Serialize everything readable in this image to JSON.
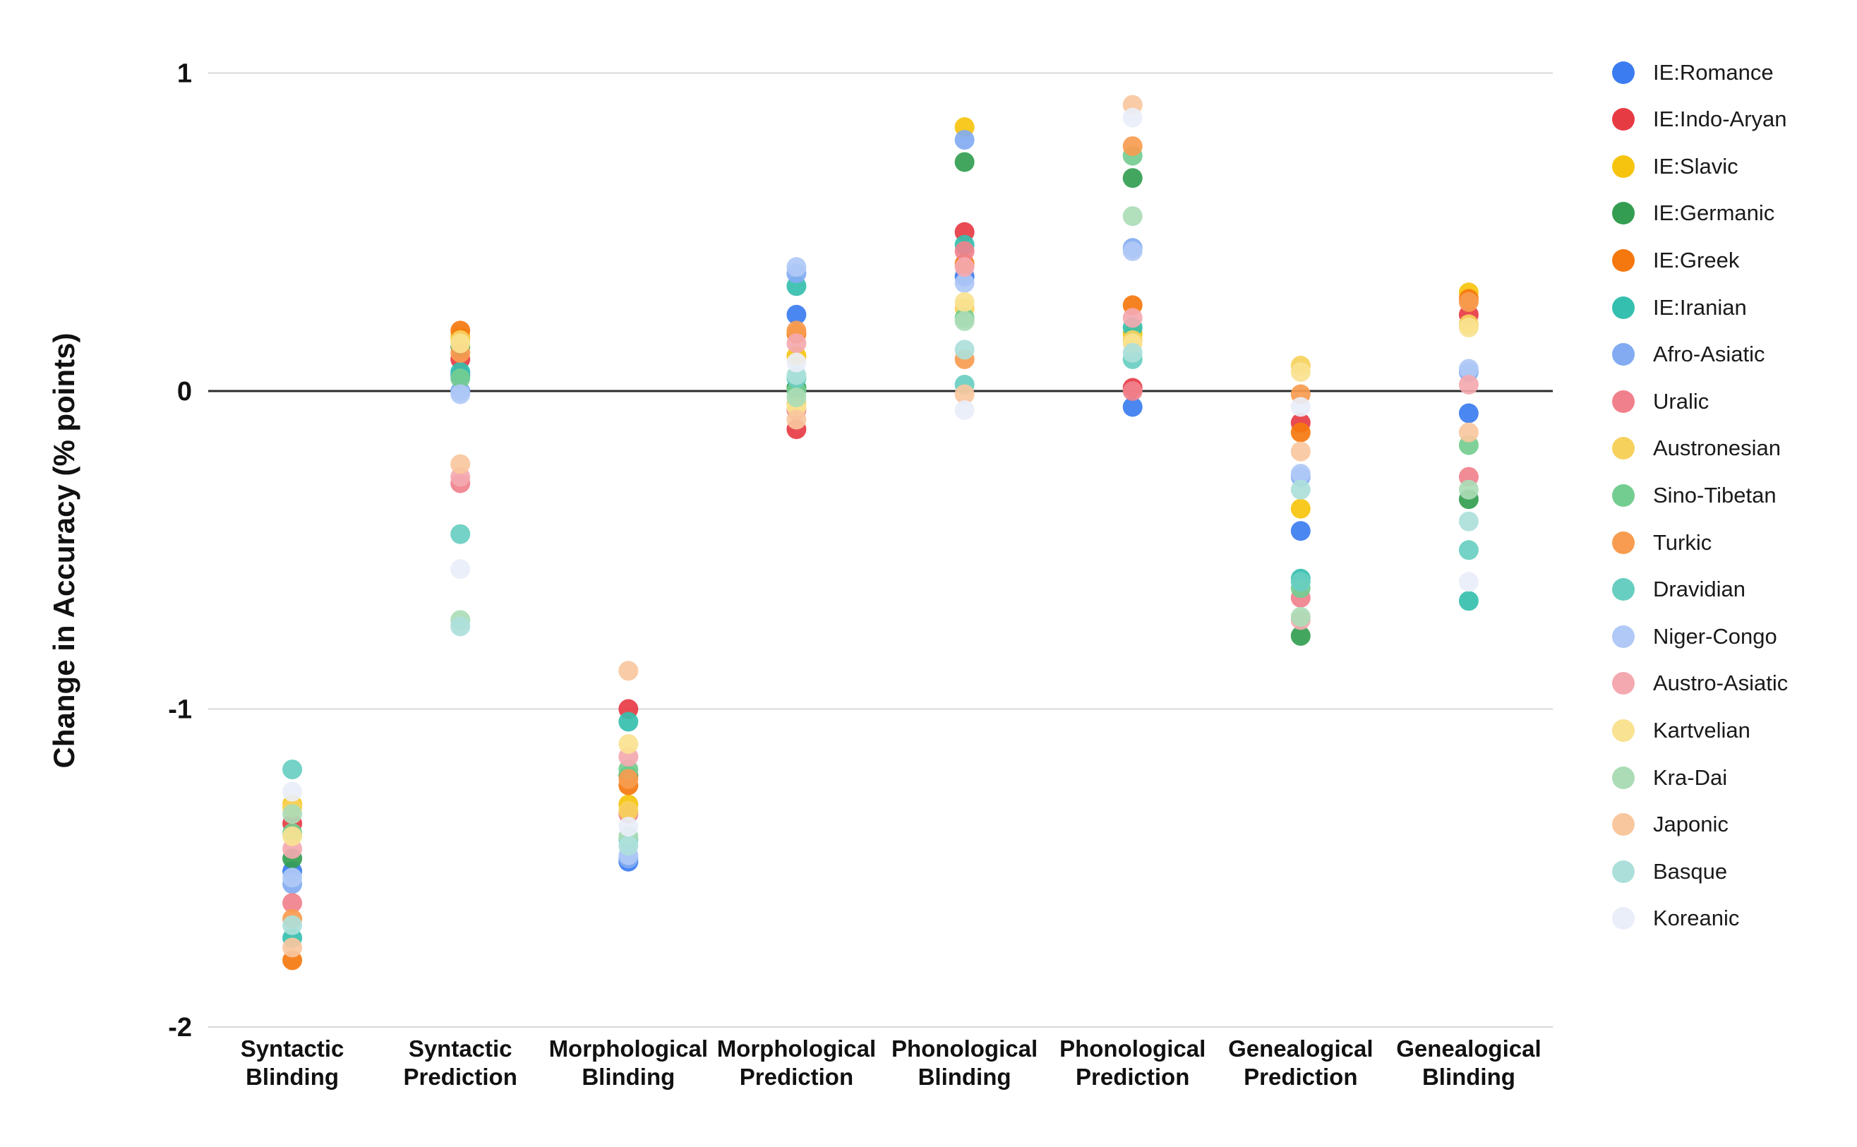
{
  "chart_data": {
    "type": "scatter",
    "title": "",
    "xlabel": "",
    "ylabel": "Change in Accuracy (% points)",
    "grid": true,
    "zero_line": true,
    "legend_position": "right",
    "ylim": [
      -2.15,
      1.15
    ],
    "yticks": [
      1,
      0,
      -1,
      -2
    ],
    "categories": [
      "Syntactic Blinding",
      "Syntactic Prediction",
      "Morphological Blinding",
      "Morphological Prediction",
      "Phonological Blinding",
      "Phonological Prediction",
      "Genealogical Prediction",
      "Genealogical Blinding"
    ],
    "series": [
      {
        "name": "IE:Romance",
        "color": "#3b7df0",
        "values": [
          -1.51,
          0.05,
          -1.48,
          0.24,
          0.36,
          -0.05,
          -0.44,
          -0.07
        ]
      },
      {
        "name": "IE:Indo-Aryan",
        "color": "#e73b44",
        "values": [
          -1.36,
          0.1,
          -1.0,
          -0.12,
          0.5,
          0.01,
          -0.1,
          0.24
        ]
      },
      {
        "name": "IE:Slavic",
        "color": "#f6c40e",
        "values": [
          -1.3,
          0.17,
          -1.3,
          0.11,
          0.83,
          0.18,
          -0.37,
          0.31
        ]
      },
      {
        "name": "IE:Germanic",
        "color": "#339e51",
        "values": [
          -1.47,
          0.14,
          -1.21,
          0.01,
          0.72,
          0.67,
          -0.77,
          -0.34
        ]
      },
      {
        "name": "IE:Greek",
        "color": "#f5780f",
        "values": [
          -1.79,
          0.19,
          -1.24,
          0.18,
          0.4,
          0.27,
          -0.13,
          0.29
        ]
      },
      {
        "name": "IE:Iranian",
        "color": "#35bfae",
        "values": [
          -1.72,
          0.06,
          -1.04,
          0.33,
          0.46,
          0.2,
          -0.59,
          -0.66
        ]
      },
      {
        "name": "Afro-Asiatic",
        "color": "#82abf2",
        "values": [
          -1.55,
          0.0,
          -1.47,
          0.37,
          0.79,
          0.45,
          -0.27,
          0.06
        ]
      },
      {
        "name": "Uralic",
        "color": "#f0818c",
        "values": [
          -1.61,
          -0.29,
          -1.33,
          -0.06,
          0.44,
          0.0,
          -0.65,
          -0.27
        ]
      },
      {
        "name": "Austronesian",
        "color": "#f6d15c",
        "values": [
          -1.31,
          0.16,
          -1.32,
          -0.04,
          0.26,
          0.16,
          0.08,
          0.21
        ]
      },
      {
        "name": "Sino-Tibetan",
        "color": "#74cd90",
        "values": [
          -1.39,
          0.04,
          -1.19,
          0.0,
          0.23,
          0.74,
          -0.62,
          -0.17
        ]
      },
      {
        "name": "Turkic",
        "color": "#f79c50",
        "values": [
          -1.66,
          0.12,
          -1.22,
          0.19,
          0.1,
          0.77,
          -0.01,
          0.28
        ]
      },
      {
        "name": "Dravidian",
        "color": "#68cec1",
        "values": [
          -1.19,
          -0.45,
          -1.41,
          0.04,
          0.02,
          0.1,
          -0.6,
          -0.5
        ]
      },
      {
        "name": "Niger-Congo",
        "color": "#b0c9f6",
        "values": [
          -1.53,
          -0.01,
          -1.46,
          0.39,
          0.34,
          0.44,
          -0.26,
          0.07
        ]
      },
      {
        "name": "Austro-Asiatic",
        "color": "#f4a9b0",
        "values": [
          -1.44,
          -0.27,
          -1.15,
          0.15,
          0.39,
          0.23,
          -0.72,
          0.02
        ]
      },
      {
        "name": "Kartvelian",
        "color": "#f9e291",
        "values": [
          -1.4,
          0.15,
          -1.11,
          -0.05,
          0.28,
          0.15,
          0.06,
          0.2
        ]
      },
      {
        "name": "Kra-Dai",
        "color": "#abdcb6",
        "values": [
          -1.33,
          -0.72,
          -1.4,
          -0.02,
          0.22,
          0.55,
          -0.71,
          -0.31
        ]
      },
      {
        "name": "Japonic",
        "color": "#f9c79e",
        "values": [
          -1.75,
          -0.23,
          -0.88,
          -0.09,
          -0.01,
          0.9,
          -0.19,
          -0.13
        ]
      },
      {
        "name": "Basque",
        "color": "#addfda",
        "values": [
          -1.68,
          -0.74,
          -1.43,
          0.05,
          0.13,
          0.12,
          -0.31,
          -0.41
        ]
      },
      {
        "name": "Koreanic",
        "color": "#e9eef9",
        "values": [
          -1.26,
          -0.56,
          -1.37,
          0.09,
          -0.06,
          0.86,
          -0.05,
          -0.6
        ]
      }
    ]
  },
  "colors": {
    "background": "#ffffff",
    "gridline": "#d8d8d8",
    "zeroline": "#2b2b2b",
    "text": "#111111"
  }
}
